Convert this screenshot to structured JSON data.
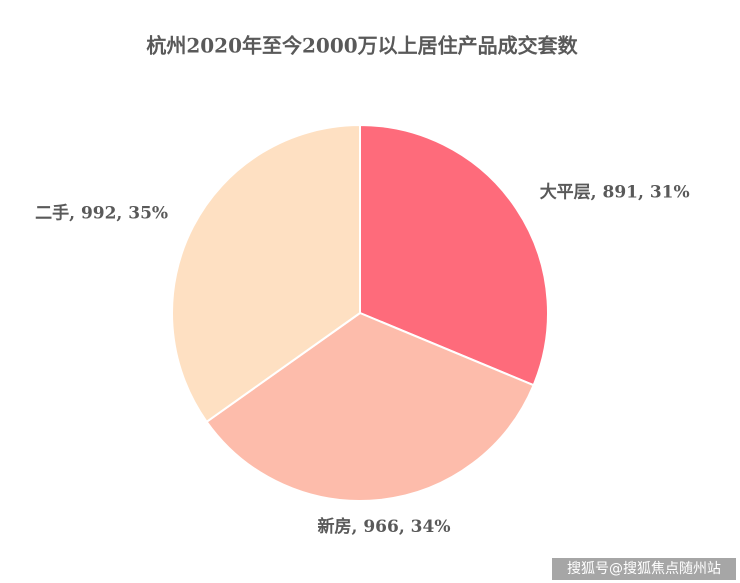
{
  "chart_data": {
    "type": "pie",
    "title": "杭州2020年至今2000万以上居住产品成交套数",
    "values": [
      891,
      966,
      992
    ],
    "value_labels": [
      "大平层, 891, 31%",
      "新房, 966, 34%",
      "二手, 992, 35%"
    ],
    "colors": [
      "#fe6b7b",
      "#fdbcab",
      "#fee0c2"
    ]
  },
  "watermark": "搜狐号@搜狐焦点随州站"
}
